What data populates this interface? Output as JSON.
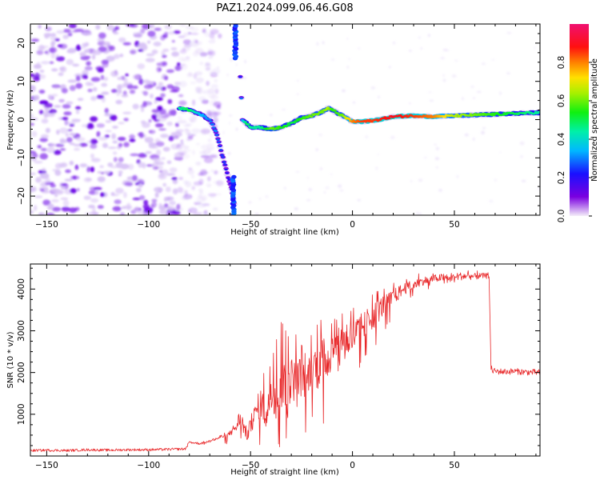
{
  "title": "PAZ1.2024.099.06.46.G08",
  "chart_data": [
    {
      "type": "heatmap",
      "xlabel": "Height of straight line (km)",
      "ylabel": "Frequency (Hz)",
      "xlim": [
        -158,
        92
      ],
      "ylim": [
        -25,
        25
      ],
      "xticks": [
        -150,
        -100,
        -50,
        0,
        50
      ],
      "yticks": [
        -20,
        -10,
        0,
        10,
        20
      ],
      "colorbar": {
        "label": "Normalized spectral amplitude",
        "range": [
          0.0,
          1.0
        ],
        "ticks": [
          0.0,
          0.2,
          0.4,
          0.6,
          0.8
        ],
        "colormap": "rainbow (violet-blue-cyan-green-yellow-orange-red-magenta)"
      },
      "noise_region_x": [
        -158,
        -75
      ],
      "track": {
        "x": [
          -85,
          -80,
          -75,
          -70,
          -67,
          -65,
          -63,
          -61,
          -59,
          -58,
          -56,
          -54,
          -52,
          -50,
          -45,
          -40,
          -35,
          -30,
          -25,
          -20,
          -15,
          -12,
          -10,
          -5,
          0,
          5,
          10,
          20,
          30,
          40,
          50,
          60,
          70,
          80,
          90
        ],
        "freq": [
          3,
          2.5,
          1.5,
          0,
          -3,
          -7,
          -11,
          -15,
          -19,
          -22,
          22,
          0,
          -1,
          -2,
          -2,
          -2.5,
          -2,
          -1,
          0.5,
          1,
          2,
          3,
          2.5,
          1,
          -0.5,
          -0.5,
          -0.3,
          0.8,
          1,
          0.8,
          1,
          1.2,
          1.4,
          1.6,
          1.8
        ],
        "amplitude": [
          0.45,
          0.5,
          0.35,
          0.3,
          0.3,
          0.25,
          0.25,
          0.2,
          0.2,
          0.15,
          0.12,
          0.35,
          0.5,
          0.45,
          0.45,
          0.6,
          0.55,
          0.5,
          0.55,
          0.6,
          0.6,
          0.65,
          0.55,
          0.6,
          0.8,
          0.85,
          0.85,
          0.9,
          0.85,
          0.8,
          0.65,
          0.6,
          0.55,
          0.5,
          0.45
        ]
      }
    },
    {
      "type": "line",
      "xlabel": "Height of straight line (km)",
      "ylabel": "SNR (10 * v/v)",
      "xlim": [
        -158,
        92
      ],
      "ylim": [
        0,
        4600
      ],
      "xticks": [
        -150,
        -100,
        -50,
        0,
        50
      ],
      "yticks": [
        1000,
        2000,
        3000,
        4000
      ],
      "series": [
        {
          "color": "#e8282a",
          "x": [
            -158,
            -150,
            -140,
            -130,
            -120,
            -110,
            -100,
            -90,
            -82,
            -80,
            -75,
            -70,
            -65,
            -60,
            -57,
            -55,
            -52,
            -50,
            -47,
            -45,
            -42,
            -40,
            -37,
            -35,
            -32,
            -30,
            -27,
            -25,
            -22,
            -20,
            -17,
            -15,
            -12,
            -10,
            -7,
            -5,
            -2,
            0,
            5,
            10,
            15,
            20,
            25,
            30,
            35,
            40,
            45,
            50,
            55,
            60,
            65,
            67,
            68,
            69,
            70,
            75,
            80,
            85,
            92
          ],
          "y": [
            130,
            140,
            130,
            150,
            140,
            150,
            150,
            160,
            170,
            330,
            300,
            350,
            450,
            550,
            700,
            950,
            500,
            700,
            1100,
            1300,
            900,
            1600,
            1300,
            1800,
            1400,
            1900,
            1700,
            2100,
            1800,
            2300,
            2100,
            2450,
            2300,
            2600,
            2500,
            2700,
            2800,
            2850,
            3100,
            3350,
            3600,
            3800,
            4000,
            4100,
            4200,
            4250,
            4280,
            4300,
            4310,
            4300,
            4320,
            4300,
            2100,
            2040,
            2030,
            2020,
            2030,
            2010,
            2000
          ],
          "max_envelope": {
            "x": [
              -80,
              -70,
              -60,
              -55,
              -50,
              -45,
              -40,
              -35,
              -30,
              -25,
              -20,
              -15,
              -10,
              -5,
              0,
              5,
              10,
              20,
              30,
              40,
              50,
              60,
              67
            ],
            "y": [
              350,
              380,
              620,
              1300,
              950,
              1900,
              2200,
              3300,
              2700,
              3250,
              2950,
              3350,
              3250,
              3450,
              3550,
              3800,
              3950,
              4150,
              4350,
              4450,
              4560,
              4500,
              4480
            ]
          },
          "min_envelope": {
            "x": [
              -80,
              -70,
              -60,
              -55,
              -50,
              -45,
              -40,
              -35,
              -30,
              -25,
              -20,
              -15,
              -10,
              -5,
              0,
              5,
              10,
              20,
              30,
              40,
              50,
              60,
              67
            ],
            "y": [
              230,
              240,
              300,
              350,
              150,
              250,
              450,
              150,
              600,
              350,
              900,
              700,
              1200,
              800,
              1500,
              2300,
              2500,
              3300,
              3850,
              4050,
              4100,
              4150,
              4200
            ]
          }
        }
      ]
    }
  ]
}
